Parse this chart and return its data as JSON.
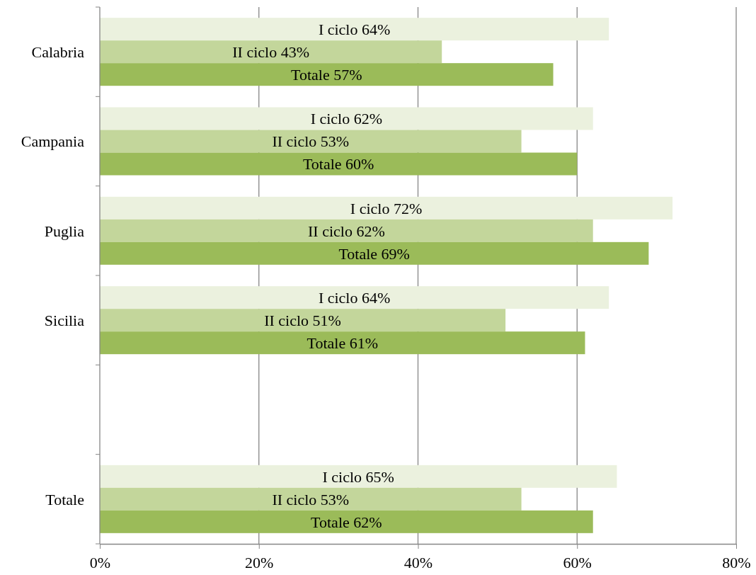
{
  "chart_data": {
    "type": "bar",
    "orientation": "horizontal",
    "categories": [
      "Calabria",
      "Campania",
      "Puglia",
      "Sicilia",
      null,
      "Totale"
    ],
    "series": [
      {
        "color": "#ebf1de",
        "values": [
          64,
          62,
          72,
          64,
          null,
          65
        ],
        "value_labels": [
          "I ciclo 64%",
          "I ciclo 62%",
          "I ciclo 72%",
          "I ciclo 64%",
          null,
          "I ciclo 65%"
        ]
      },
      {
        "color": "#c3d69b",
        "values": [
          43,
          53,
          62,
          51,
          null,
          53
        ],
        "value_labels": [
          "II ciclo 43%",
          "II ciclo 53%",
          "II ciclo 62%",
          "II ciclo 51%",
          null,
          "II ciclo 53%"
        ]
      },
      {
        "color": "#9bbb59",
        "values": [
          57,
          60,
          69,
          61,
          null,
          62
        ],
        "value_labels": [
          "Totale 57%",
          "Totale 60%",
          "Totale 69%",
          "Totale 61%",
          null,
          "Totale 62%"
        ]
      }
    ],
    "xlim": [
      0,
      80
    ],
    "xticks": [
      {
        "value": 0,
        "label": "0%"
      },
      {
        "value": 20,
        "label": "20%"
      },
      {
        "value": 40,
        "label": "40%"
      },
      {
        "value": 60,
        "label": "60%"
      },
      {
        "value": 80,
        "label": "80%"
      }
    ],
    "grid": "x",
    "legend": false
  }
}
